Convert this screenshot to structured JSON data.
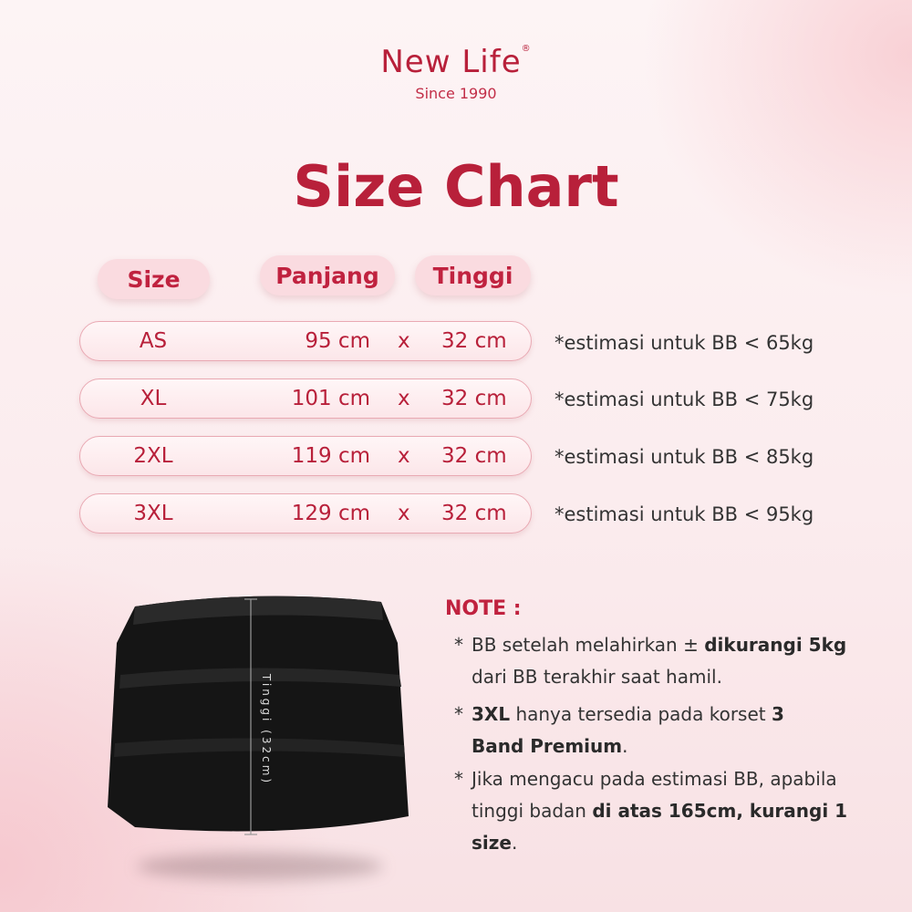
{
  "brand": {
    "name": "New Life",
    "registered": "®",
    "tagline": "Since 1990"
  },
  "title": "Size Chart",
  "headers": {
    "size": "Size",
    "panjang": "Panjang",
    "tinggi": "Tinggi"
  },
  "rows": [
    {
      "size": "AS",
      "panjang": "95 cm",
      "sep": "x",
      "tinggi": "32 cm",
      "estimate": "*estimasi untuk BB < 65kg"
    },
    {
      "size": "XL",
      "panjang": "101 cm",
      "sep": "x",
      "tinggi": "32 cm",
      "estimate": "*estimasi untuk BB < 75kg"
    },
    {
      "size": "2XL",
      "panjang": "119 cm",
      "sep": "x",
      "tinggi": "32 cm",
      "estimate": "*estimasi untuk BB < 85kg"
    },
    {
      "size": "3XL",
      "panjang": "129 cm",
      "sep": "x",
      "tinggi": "32 cm",
      "estimate": "*estimasi untuk BB < 95kg"
    }
  ],
  "product_image": {
    "measure_label": "Tinggi (32cm)"
  },
  "note": {
    "heading": "NOTE :",
    "items": [
      {
        "star": "*",
        "a": "BB setelah melahirkan ± ",
        "b": "dikurangi 5kg",
        "c": " dari BB terakhir saat hamil."
      },
      {
        "star": "*",
        "a": "",
        "b": "3XL",
        "c": " hanya tersedia pada korset ",
        "d": "3 Band Premium",
        "e": "."
      },
      {
        "star": "*",
        "a": "Jika mengacu pada estimasi BB, apabila tinggi badan ",
        "b": "di atas 165cm, kurangi 1 size",
        "c": "."
      }
    ]
  },
  "colors": {
    "accent": "#b8203a",
    "pill": "#fadbe0"
  }
}
